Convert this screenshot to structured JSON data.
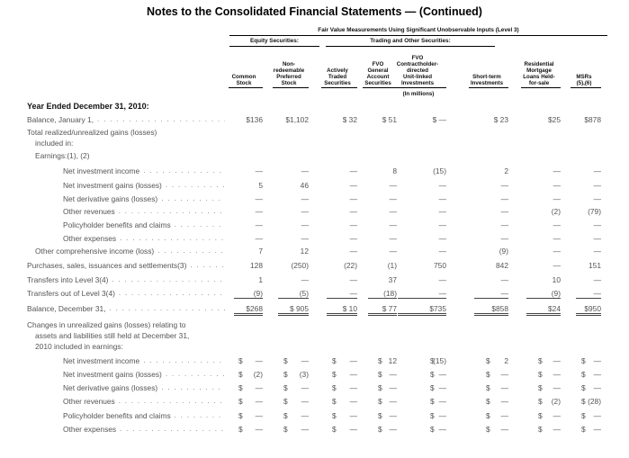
{
  "title": "Notes to the Consolidated Financial Statements — (Continued)",
  "header": {
    "top": "Fair Value Measurements Using Significant Unobservable Inputs (Level 3)",
    "group_equity": "Equity Securities:",
    "group_trading": "Trading and Other Securities:",
    "units": "(In millions)",
    "columns": [
      [
        "Common",
        "Stock"
      ],
      [
        "Non-",
        "redeemable",
        "Preferred",
        "Stock"
      ],
      [
        "Actively",
        "Traded",
        "Securities"
      ],
      [
        "FVO",
        "General",
        "Account",
        "Securities"
      ],
      [
        "FVO",
        "Contractholder-",
        "directed",
        "Unit-linked",
        "Investments"
      ],
      [
        "Short-term",
        "Investments"
      ],
      [
        "Residential",
        "Mortgage",
        "Loans Held-",
        "for-sale"
      ],
      [
        "MSRs",
        "(5),(6)"
      ]
    ]
  },
  "rows": [
    {
      "label": "Year Ended December 31, 2010:",
      "style": "bold",
      "values": []
    },
    {
      "label": "Balance, January 1,",
      "dots": true,
      "values": [
        "$136",
        "$1,102",
        "$ 32",
        "$ 51",
        "$  —",
        "$  23",
        "$25",
        "$878"
      ]
    },
    {
      "label": "Total realized/unrealized gains (losses)",
      "values": []
    },
    {
      "label": "included in:",
      "indent": 1,
      "values": []
    },
    {
      "label": "Earnings:(1), (2)",
      "indent": 1,
      "values": []
    },
    {
      "label": "Net investment income",
      "indent": 2,
      "dots": true,
      "values": [
        "—",
        "—",
        "—",
        "8",
        "(15)",
        "2",
        "—",
        "—"
      ]
    },
    {
      "label": "Net investment gains (losses)",
      "indent": 2,
      "dots": true,
      "values": [
        "5",
        "46",
        "—",
        "—",
        "—",
        "—",
        "—",
        "—"
      ]
    },
    {
      "label": "Net derivative gains (losses)",
      "indent": 2,
      "dots": true,
      "values": [
        "—",
        "—",
        "—",
        "—",
        "—",
        "—",
        "—",
        "—"
      ]
    },
    {
      "label": "Other revenues",
      "indent": 2,
      "dots": true,
      "values": [
        "—",
        "—",
        "—",
        "—",
        "—",
        "—",
        "(2)",
        "(79)"
      ]
    },
    {
      "label": "Policyholder benefits and claims",
      "indent": 2,
      "dots": true,
      "values": [
        "—",
        "—",
        "—",
        "—",
        "—",
        "—",
        "—",
        "—"
      ]
    },
    {
      "label": "Other expenses",
      "indent": 2,
      "dots": true,
      "values": [
        "—",
        "—",
        "—",
        "—",
        "—",
        "—",
        "—",
        "—"
      ]
    },
    {
      "label": "Other comprehensive income (loss)",
      "indent": 1,
      "dots": true,
      "values": [
        "7",
        "12",
        "—",
        "—",
        "—",
        "(9)",
        "—",
        "—"
      ]
    },
    {
      "label": "Purchases, sales, issuances and settlements(3)",
      "dots": true,
      "values": [
        "128",
        "(250)",
        "(22)",
        "(1)",
        "750",
        "842",
        "—",
        "151"
      ]
    },
    {
      "label": "Transfers into Level 3(4)",
      "dots": true,
      "values": [
        "1",
        "—",
        "—",
        "37",
        "—",
        "—",
        "10",
        "—"
      ]
    },
    {
      "label": "Transfers out of Level 3(4)",
      "dots": true,
      "underline": true,
      "values": [
        "(9)",
        "(5)",
        "—",
        "(18)",
        "—",
        "—",
        "(9)",
        "—"
      ]
    },
    {
      "label": "Balance, December 31,",
      "dots": true,
      "double": true,
      "values": [
        "$268",
        "$  905",
        "$ 10",
        "$ 77",
        "$735",
        "$858",
        "$24",
        "$950"
      ]
    },
    {
      "label": "Changes in unrealized gains (losses) relating to",
      "values": []
    },
    {
      "label": "assets and liabilities still held at December 31,",
      "indent": 1,
      "values": []
    },
    {
      "label": "2010 included in earnings:",
      "indent": 1,
      "values": []
    },
    {
      "label": "Net investment income",
      "indent": 2,
      "dots": true,
      "dollar": true,
      "values": [
        "—",
        "—",
        "—",
        "12",
        "(15)",
        "2",
        "—",
        "—"
      ]
    },
    {
      "label": "Net investment gains (losses)",
      "indent": 2,
      "dots": true,
      "dollar": true,
      "values": [
        "(2)",
        "(3)",
        "—",
        "—",
        "—",
        "—",
        "—",
        "—"
      ]
    },
    {
      "label": "Net derivative gains (losses)",
      "indent": 2,
      "dots": true,
      "dollar": true,
      "values": [
        "—",
        "—",
        "—",
        "—",
        "—",
        "—",
        "—",
        "—"
      ]
    },
    {
      "label": "Other revenues",
      "indent": 2,
      "dots": true,
      "dollar": true,
      "values": [
        "—",
        "—",
        "—",
        "—",
        "—",
        "—",
        "(2)",
        "(28)"
      ]
    },
    {
      "label": "Policyholder benefits and claims",
      "indent": 2,
      "dots": true,
      "dollar": true,
      "values": [
        "—",
        "—",
        "—",
        "—",
        "—",
        "—",
        "—",
        "—"
      ]
    },
    {
      "label": "Other expenses",
      "indent": 2,
      "dots": true,
      "dollar": true,
      "values": [
        "—",
        "—",
        "—",
        "—",
        "—",
        "—",
        "—",
        "—"
      ]
    }
  ]
}
